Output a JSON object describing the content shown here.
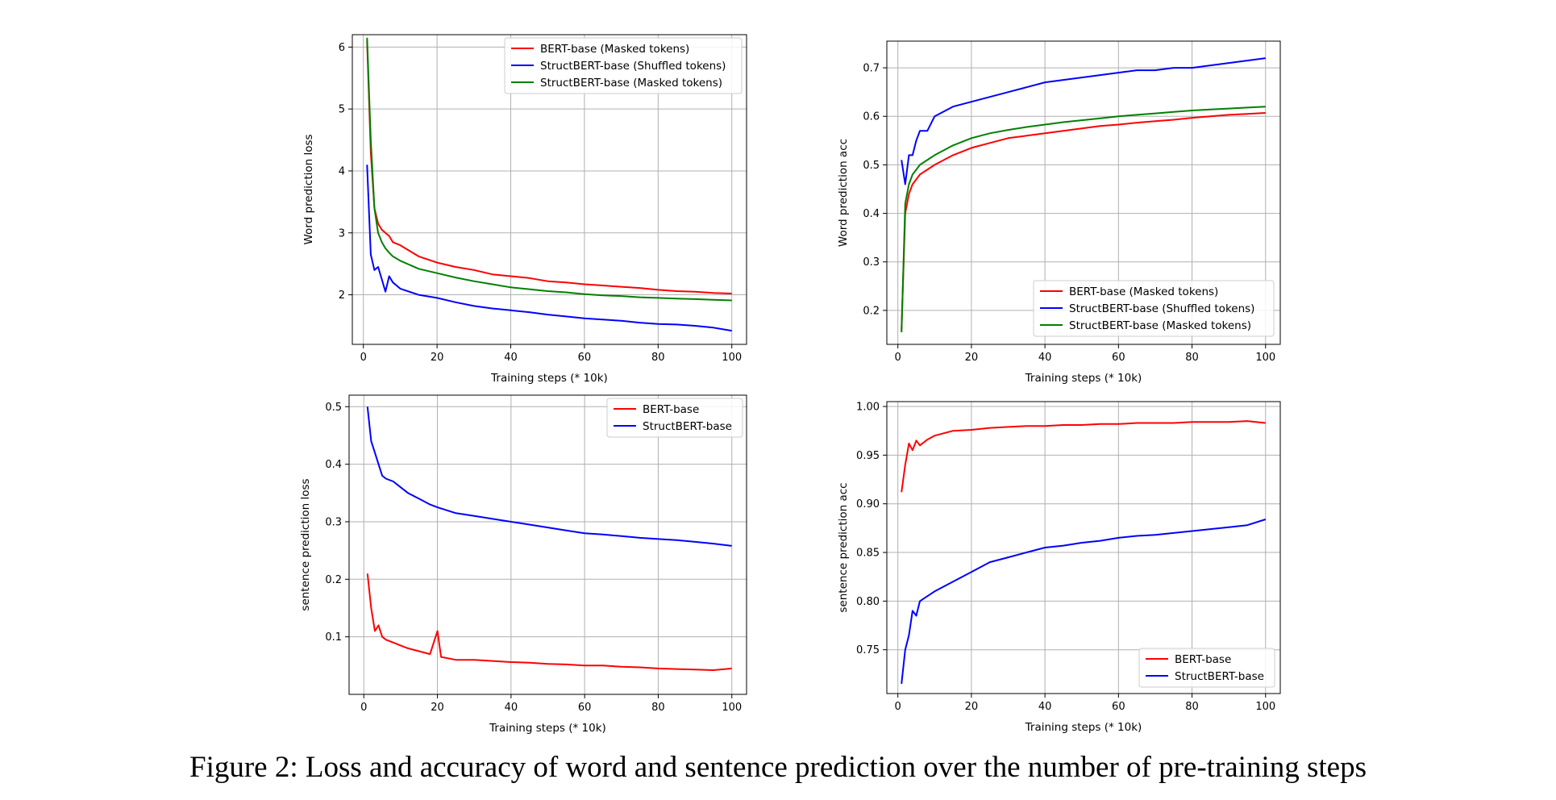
{
  "caption": "Figure 2: Loss and accuracy of word and sentence prediction over the number of pre-training steps",
  "colors": {
    "bert": "#ff0000",
    "struct_shuffled": "#0000ff",
    "struct_masked": "#008000"
  },
  "chart_data": [
    {
      "type": "line",
      "xlabel": "Training steps (* 10k)",
      "ylabel": "Word prediction loss",
      "xlim": [
        -3,
        104
      ],
      "ylim": [
        1.2,
        6.2
      ],
      "xticks": [
        "0",
        "20",
        "40",
        "60",
        "80",
        "100"
      ],
      "yticks": [
        "2",
        "3",
        "4",
        "5",
        "6"
      ],
      "grid": true,
      "legend_position": "upper-right",
      "series": [
        {
          "name": "BERT-base (Masked tokens)",
          "color": "#ff0000",
          "x": [
            1,
            2,
            3,
            4,
            5,
            6,
            7,
            8,
            10,
            15,
            20,
            25,
            30,
            35,
            40,
            45,
            50,
            55,
            60,
            65,
            70,
            75,
            80,
            85,
            90,
            95,
            100
          ],
          "y": [
            6.1,
            4.3,
            3.4,
            3.15,
            3.05,
            3.0,
            2.95,
            2.85,
            2.8,
            2.62,
            2.52,
            2.45,
            2.4,
            2.33,
            2.3,
            2.27,
            2.22,
            2.2,
            2.17,
            2.15,
            2.13,
            2.11,
            2.08,
            2.06,
            2.05,
            2.03,
            2.02
          ]
        },
        {
          "name": "StructBERT-base (Shuffled tokens)",
          "color": "#0000ff",
          "x": [
            1,
            2,
            3,
            4,
            5,
            6,
            7,
            8,
            10,
            15,
            20,
            25,
            30,
            35,
            40,
            45,
            50,
            55,
            60,
            65,
            70,
            75,
            80,
            85,
            90,
            95,
            100
          ],
          "y": [
            4.1,
            2.65,
            2.4,
            2.45,
            2.25,
            2.05,
            2.3,
            2.2,
            2.1,
            2.0,
            1.95,
            1.88,
            1.82,
            1.78,
            1.75,
            1.72,
            1.68,
            1.65,
            1.62,
            1.6,
            1.58,
            1.55,
            1.53,
            1.52,
            1.5,
            1.47,
            1.42
          ]
        },
        {
          "name": "StructBERT-base (Masked tokens)",
          "color": "#008000",
          "x": [
            1,
            2,
            3,
            4,
            5,
            6,
            7,
            8,
            10,
            15,
            20,
            25,
            30,
            35,
            40,
            45,
            50,
            55,
            60,
            65,
            70,
            75,
            80,
            85,
            90,
            95,
            100
          ],
          "y": [
            6.15,
            4.5,
            3.4,
            3.0,
            2.85,
            2.75,
            2.68,
            2.62,
            2.55,
            2.42,
            2.35,
            2.28,
            2.22,
            2.17,
            2.12,
            2.09,
            2.06,
            2.04,
            2.01,
            1.99,
            1.98,
            1.96,
            1.95,
            1.94,
            1.93,
            1.92,
            1.91
          ]
        }
      ]
    },
    {
      "type": "line",
      "xlabel": "Training steps (* 10k)",
      "ylabel": "Word prediction acc",
      "xlim": [
        -3,
        104
      ],
      "ylim": [
        0.13,
        0.755
      ],
      "xticks": [
        "0",
        "20",
        "40",
        "60",
        "80",
        "100"
      ],
      "yticks": [
        "0.2",
        "0.3",
        "0.4",
        "0.5",
        "0.6",
        "0.7"
      ],
      "grid": true,
      "legend_position": "lower-right",
      "series": [
        {
          "name": "BERT-base (Masked tokens)",
          "color": "#ff0000",
          "x": [
            1,
            2,
            3,
            4,
            5,
            6,
            8,
            10,
            15,
            20,
            25,
            30,
            35,
            40,
            45,
            50,
            55,
            60,
            65,
            70,
            75,
            80,
            85,
            90,
            95,
            100
          ],
          "y": [
            0.16,
            0.4,
            0.44,
            0.46,
            0.47,
            0.48,
            0.49,
            0.5,
            0.52,
            0.535,
            0.545,
            0.555,
            0.56,
            0.565,
            0.57,
            0.575,
            0.58,
            0.583,
            0.587,
            0.59,
            0.593,
            0.597,
            0.6,
            0.603,
            0.605,
            0.607
          ]
        },
        {
          "name": "StructBERT-base (Shuffled tokens)",
          "color": "#0000ff",
          "x": [
            1,
            2,
            3,
            4,
            5,
            6,
            8,
            10,
            15,
            20,
            25,
            30,
            35,
            40,
            45,
            50,
            55,
            60,
            65,
            70,
            75,
            80,
            85,
            90,
            95,
            100
          ],
          "y": [
            0.51,
            0.46,
            0.52,
            0.52,
            0.55,
            0.57,
            0.57,
            0.6,
            0.62,
            0.63,
            0.64,
            0.65,
            0.66,
            0.67,
            0.675,
            0.68,
            0.685,
            0.69,
            0.695,
            0.695,
            0.7,
            0.7,
            0.705,
            0.71,
            0.715,
            0.72
          ]
        },
        {
          "name": "StructBERT-base (Masked tokens)",
          "color": "#008000",
          "x": [
            1,
            2,
            3,
            4,
            5,
            6,
            8,
            10,
            15,
            20,
            25,
            30,
            35,
            40,
            45,
            50,
            55,
            60,
            65,
            70,
            75,
            80,
            85,
            90,
            95,
            100
          ],
          "y": [
            0.155,
            0.42,
            0.46,
            0.48,
            0.49,
            0.5,
            0.51,
            0.52,
            0.54,
            0.555,
            0.565,
            0.572,
            0.578,
            0.583,
            0.588,
            0.592,
            0.596,
            0.6,
            0.603,
            0.606,
            0.609,
            0.612,
            0.614,
            0.616,
            0.618,
            0.62
          ]
        }
      ]
    },
    {
      "type": "line",
      "xlabel": "Training steps (* 10k)",
      "ylabel": "sentence prediction loss",
      "xlim": [
        -4,
        104
      ],
      "ylim": [
        0.0,
        0.52
      ],
      "xticks": [
        "0",
        "20",
        "40",
        "60",
        "80",
        "100"
      ],
      "yticks": [
        "0.1",
        "0.2",
        "0.3",
        "0.4",
        "0.5"
      ],
      "grid": true,
      "legend_position": "upper-right",
      "series": [
        {
          "name": "BERT-base",
          "color": "#ff0000",
          "x": [
            1,
            2,
            3,
            4,
            5,
            6,
            8,
            10,
            12,
            15,
            18,
            20,
            21,
            25,
            30,
            35,
            40,
            45,
            50,
            55,
            60,
            65,
            70,
            75,
            80,
            85,
            90,
            95,
            100
          ],
          "y": [
            0.21,
            0.15,
            0.11,
            0.12,
            0.1,
            0.095,
            0.09,
            0.085,
            0.08,
            0.075,
            0.07,
            0.11,
            0.065,
            0.06,
            0.06,
            0.058,
            0.056,
            0.055,
            0.053,
            0.052,
            0.05,
            0.05,
            0.048,
            0.047,
            0.045,
            0.044,
            0.043,
            0.042,
            0.045
          ]
        },
        {
          "name": "StructBERT-base",
          "color": "#0000ff",
          "x": [
            1,
            2,
            3,
            4,
            5,
            6,
            8,
            10,
            12,
            15,
            18,
            20,
            25,
            30,
            35,
            40,
            45,
            50,
            55,
            60,
            65,
            70,
            75,
            80,
            85,
            90,
            95,
            100
          ],
          "y": [
            0.5,
            0.44,
            0.42,
            0.4,
            0.38,
            0.375,
            0.37,
            0.36,
            0.35,
            0.34,
            0.33,
            0.325,
            0.315,
            0.31,
            0.305,
            0.3,
            0.295,
            0.29,
            0.285,
            0.28,
            0.278,
            0.275,
            0.272,
            0.27,
            0.268,
            0.265,
            0.262,
            0.258
          ]
        }
      ]
    },
    {
      "type": "line",
      "xlabel": "Training steps (* 10k)",
      "ylabel": "sentence prediction acc",
      "xlim": [
        -3,
        104
      ],
      "ylim": [
        0.705,
        1.005
      ],
      "xticks": [
        "0",
        "20",
        "40",
        "60",
        "80",
        "100"
      ],
      "yticks": [
        "0.75",
        "0.80",
        "0.85",
        "0.90",
        "0.95",
        "1.00"
      ],
      "grid": true,
      "legend_position": "lower-right",
      "series": [
        {
          "name": "BERT-base",
          "color": "#ff0000",
          "x": [
            1,
            2,
            3,
            4,
            5,
            6,
            8,
            10,
            15,
            20,
            25,
            30,
            35,
            40,
            45,
            50,
            55,
            60,
            65,
            70,
            75,
            80,
            85,
            90,
            95,
            100
          ],
          "y": [
            0.912,
            0.94,
            0.962,
            0.955,
            0.965,
            0.96,
            0.966,
            0.97,
            0.975,
            0.976,
            0.978,
            0.979,
            0.98,
            0.98,
            0.981,
            0.981,
            0.982,
            0.982,
            0.983,
            0.983,
            0.983,
            0.984,
            0.984,
            0.984,
            0.985,
            0.983
          ]
        },
        {
          "name": "StructBERT-base",
          "color": "#0000ff",
          "x": [
            1,
            2,
            3,
            4,
            5,
            6,
            8,
            10,
            15,
            20,
            25,
            30,
            35,
            40,
            45,
            50,
            55,
            60,
            65,
            70,
            75,
            80,
            85,
            90,
            95,
            100
          ],
          "y": [
            0.715,
            0.75,
            0.765,
            0.79,
            0.785,
            0.8,
            0.805,
            0.81,
            0.82,
            0.83,
            0.84,
            0.845,
            0.85,
            0.855,
            0.857,
            0.86,
            0.862,
            0.865,
            0.867,
            0.868,
            0.87,
            0.872,
            0.874,
            0.876,
            0.878,
            0.884
          ]
        }
      ]
    }
  ]
}
